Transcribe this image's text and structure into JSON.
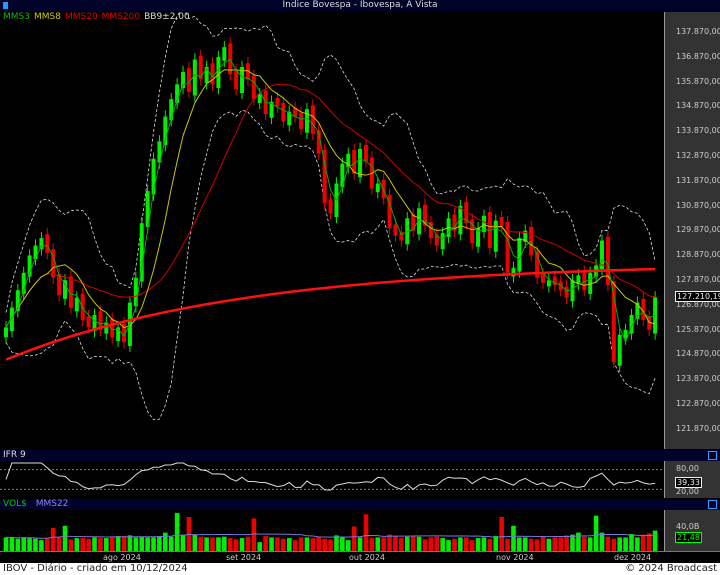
{
  "window": {
    "title": "Indice Bovespa - Ibovespa, A Vista",
    "icon": "app-icon"
  },
  "legend": [
    {
      "label": "MMS3",
      "color": "#00c000"
    },
    {
      "label": "MMS8",
      "color": "#c8c800"
    },
    {
      "label": "MMS20",
      "color": "#e00000"
    },
    {
      "label": "MMS200",
      "color": "#e00000"
    },
    {
      "label": "BB9±2,00",
      "color": "#dddddd"
    }
  ],
  "price_axis": {
    "ticks": [
      "137.870,00",
      "136.870,00",
      "135.870,00",
      "134.870,00",
      "133.870,00",
      "132.870,00",
      "131.870,00",
      "130.870,00",
      "129.870,00",
      "128.870,00",
      "127.870,00",
      "126.870,00",
      "125.870,00",
      "124.870,00",
      "123.870,00",
      "122.870,00",
      "121.870,00"
    ],
    "last": "127.210,19"
  },
  "ifr": {
    "title": "IFR 9",
    "levels": [
      "80,00",
      "20,00"
    ],
    "last": "39,33"
  },
  "volume": {
    "title": "VOL$",
    "ma_label": "MMS22",
    "tick": "40,0B",
    "last": "21,48"
  },
  "dates": [
    "ago 2024",
    "set 2024",
    "out 2024",
    "nov 2024",
    "dez 2024"
  ],
  "footer": {
    "left": "IBOV - Diário - criado em 10/12/2024",
    "right": "© 2024 Broadcast"
  },
  "chart_data": {
    "type": "candlestick",
    "ylim": [
      121500,
      138500
    ],
    "closes": [
      126000,
      126800,
      127500,
      128200,
      128900,
      129300,
      129600,
      129000,
      128000,
      127300,
      127900,
      126800,
      127200,
      126300,
      126000,
      126500,
      125900,
      126200,
      125600,
      126000,
      125400,
      127000,
      128000,
      130200,
      131500,
      132800,
      133500,
      134500,
      135200,
      135800,
      136300,
      135500,
      136800,
      136000,
      136500,
      135800,
      136900,
      137300,
      136200,
      135600,
      136500,
      136000,
      135200,
      135400,
      134600,
      135100,
      134900,
      134300,
      134700,
      134500,
      134000,
      134800,
      133800,
      133000,
      131000,
      130600,
      131800,
      132600,
      133000,
      132200,
      133200,
      132700,
      131600,
      131800,
      131200,
      130000,
      129700,
      129500,
      130400,
      129900,
      130800,
      130100,
      129600,
      129300,
      129800,
      130400,
      129900,
      130900,
      130200,
      129400,
      130000,
      130500,
      129200,
      130300,
      130100,
      128200,
      128400,
      129600,
      129900,
      128900,
      128000,
      127800,
      127900,
      127700,
      127500,
      127200,
      127900,
      128100,
      127500,
      128200,
      128500,
      129500,
      127700,
      124600,
      125700,
      125900,
      126500,
      127000,
      126300,
      125900,
      127210
    ],
    "volumes": [
      20,
      20,
      18,
      20,
      19,
      18,
      16,
      19,
      34,
      20,
      37,
      17,
      19,
      19,
      18,
      20,
      19,
      19,
      21,
      22,
      22,
      23,
      20,
      21,
      20,
      20,
      22,
      27,
      21,
      56,
      24,
      50,
      24,
      21,
      20,
      20,
      20,
      21,
      19,
      17,
      19,
      21,
      48,
      13,
      22,
      20,
      20,
      18,
      19,
      16,
      20,
      20,
      19,
      21,
      18,
      17,
      23,
      20,
      16,
      36,
      20,
      54,
      19,
      20,
      20,
      24,
      22,
      19,
      21,
      22,
      21,
      17,
      20,
      21,
      19,
      16,
      18,
      20,
      20,
      16,
      19,
      20,
      18,
      22,
      50,
      18,
      37,
      20,
      20,
      18,
      17,
      21,
      18,
      20,
      20,
      23,
      24,
      27,
      21,
      20,
      52,
      27,
      21,
      18,
      20,
      20,
      25,
      20,
      24,
      26,
      30
    ]
  }
}
